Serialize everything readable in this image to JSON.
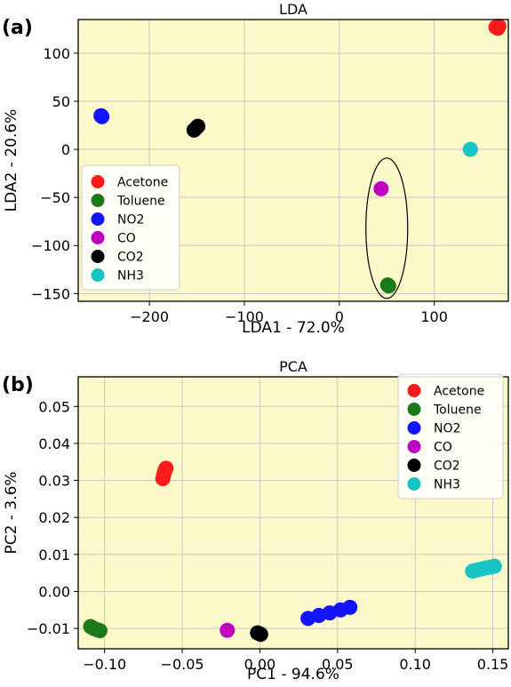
{
  "colors": {
    "plot_bg": "#fbf8c9",
    "grid": "#c9c9c2",
    "axis": "#000000",
    "Acetone": "#ff1a1a",
    "Toluene": "#1a7a1a",
    "NO2": "#1414ff",
    "CO": "#bf00bf",
    "CO2": "#000000",
    "NH3": "#17c4c4"
  },
  "chart_data": [
    {
      "type": "scatter",
      "panel_label": "(a)",
      "title": "LDA",
      "xlabel": "LDA1 - 72.0%",
      "ylabel": "LDA2 - 20.6%",
      "xlim": [
        -275,
        178
      ],
      "ylim": [
        -158,
        135
      ],
      "xticks": [
        -200,
        -100,
        0,
        100
      ],
      "xtick_labels": [
        "−200",
        "−100",
        "0",
        "100"
      ],
      "yticks": [
        -150,
        -100,
        -50,
        0,
        50,
        100
      ],
      "ytick_labels": [
        "−150",
        "−100",
        "−50",
        "0",
        "50",
        "100"
      ],
      "grid": true,
      "legend_position": "lower-left",
      "annotation": "ellipse around CO and Toluene",
      "series": [
        {
          "name": "Acetone",
          "points": [
            [
              165,
              127
            ],
            [
              167,
              126
            ],
            [
              168,
              128
            ]
          ]
        },
        {
          "name": "Toluene",
          "points": [
            [
              51,
              -141
            ],
            [
              52,
              -142
            ]
          ]
        },
        {
          "name": "NO2",
          "points": [
            [
              -251,
              35
            ],
            [
              -250,
              34
            ]
          ]
        },
        {
          "name": "CO",
          "points": [
            [
              44,
              -41
            ]
          ]
        },
        {
          "name": "CO2",
          "points": [
            [
              -153,
              20
            ],
            [
              -151,
              22
            ],
            [
              -149,
              24
            ]
          ]
        },
        {
          "name": "NH3",
          "points": [
            [
              138,
              0
            ]
          ]
        }
      ]
    },
    {
      "type": "scatter",
      "panel_label": "(b)",
      "title": "PCA",
      "xlabel": "PC1 - 94.6%",
      "ylabel": "PC2 - 3.6%",
      "xlim": [
        -0.117,
        0.16
      ],
      "ylim": [
        -0.0155,
        0.058
      ],
      "xticks": [
        -0.1,
        -0.05,
        0.0,
        0.05,
        0.1,
        0.15
      ],
      "xtick_labels": [
        "−0.10",
        "−0.05",
        "0.00",
        "0.05",
        "0.10",
        "0.15"
      ],
      "yticks": [
        -0.01,
        0.0,
        0.01,
        0.02,
        0.03,
        0.04,
        0.05
      ],
      "ytick_labels": [
        "−0.01",
        "0.00",
        "0.01",
        "0.02",
        "0.03",
        "0.04",
        "0.05"
      ],
      "grid": true,
      "legend_position": "top-right",
      "series": [
        {
          "name": "Acetone",
          "points": [
            [
              -0.0625,
              0.0305
            ],
            [
              -0.062,
              0.0315
            ],
            [
              -0.0615,
              0.0322
            ],
            [
              -0.061,
              0.0328
            ],
            [
              -0.0605,
              0.0333
            ]
          ]
        },
        {
          "name": "Toluene",
          "points": [
            [
              -0.109,
              -0.0095
            ],
            [
              -0.107,
              -0.01
            ],
            [
              -0.105,
              -0.0103
            ],
            [
              -0.103,
              -0.0106
            ]
          ]
        },
        {
          "name": "NO2",
          "points": [
            [
              0.031,
              -0.0073
            ],
            [
              0.038,
              -0.0065
            ],
            [
              0.045,
              -0.0058
            ],
            [
              0.052,
              -0.005
            ],
            [
              0.058,
              -0.0043
            ]
          ]
        },
        {
          "name": "CO",
          "points": [
            [
              -0.021,
              -0.0105
            ]
          ]
        },
        {
          "name": "CO2",
          "points": [
            [
              -0.0015,
              -0.0112
            ],
            [
              0.0005,
              -0.0116
            ]
          ]
        },
        {
          "name": "NH3",
          "points": [
            [
              0.137,
              0.0055
            ],
            [
              0.14,
              0.0058
            ],
            [
              0.143,
              0.0061
            ],
            [
              0.146,
              0.0064
            ],
            [
              0.149,
              0.0066
            ],
            [
              0.151,
              0.0068
            ]
          ]
        }
      ]
    }
  ]
}
